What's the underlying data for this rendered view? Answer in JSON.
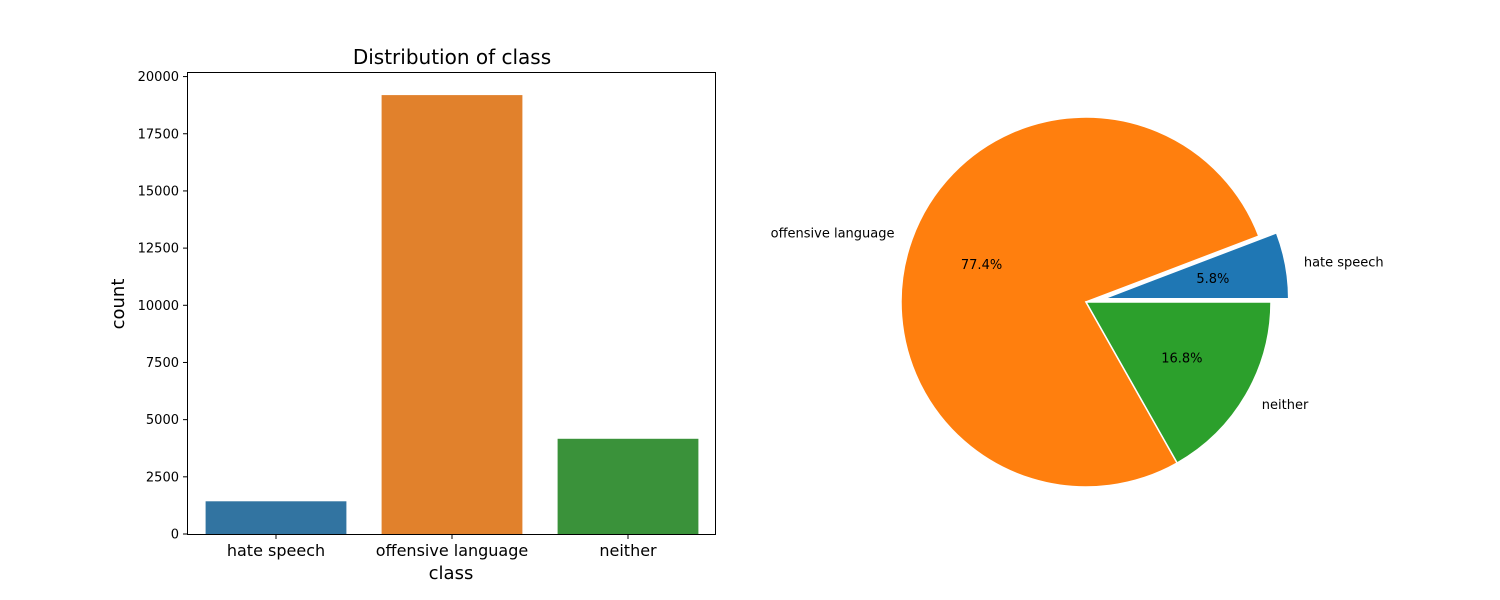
{
  "chart_data": [
    {
      "type": "bar",
      "title": "Distribution of class",
      "xlabel": "class",
      "ylabel": "count",
      "categories": [
        "hate speech",
        "offensive language",
        "neither"
      ],
      "values": [
        1430,
        19190,
        4163
      ],
      "ylim": [
        0,
        20000
      ],
      "yticks": [
        0,
        2500,
        5000,
        7500,
        10000,
        12500,
        15000,
        17500,
        20000
      ],
      "colors": [
        "#3274a1",
        "#e1812c",
        "#3a923a"
      ],
      "grid": false
    },
    {
      "type": "pie",
      "title": "",
      "labels": [
        "hate speech",
        "offensive language",
        "neither"
      ],
      "values": [
        5.8,
        77.4,
        16.8
      ],
      "percent_labels": [
        "5.8%",
        "77.4%",
        "16.8%"
      ],
      "colors": [
        "#1f77b4",
        "#ff7f0e",
        "#2ca02c"
      ],
      "exploded": [
        "hate speech"
      ]
    }
  ]
}
